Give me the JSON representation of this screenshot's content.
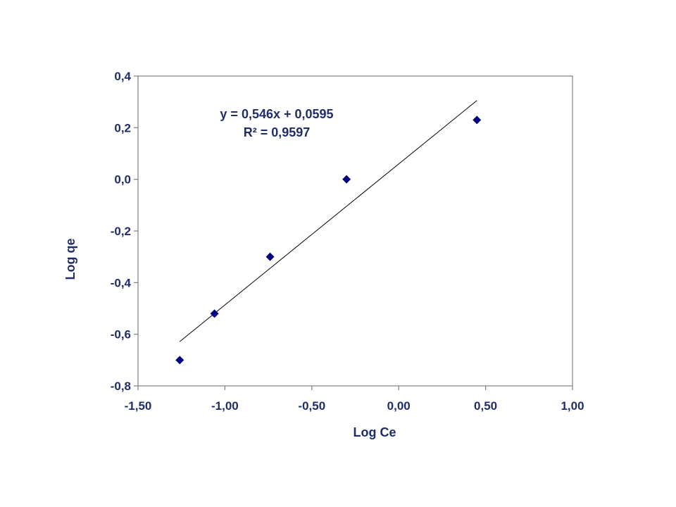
{
  "chart_data": {
    "type": "scatter",
    "xlabel": "Log Ce",
    "ylabel": "Log qe",
    "xlim": [
      -1.5,
      1.0
    ],
    "ylim": [
      -0.8,
      0.4
    ],
    "x_ticks": [
      -1.5,
      -1.0,
      -0.5,
      0.0,
      0.5,
      1.0
    ],
    "x_tick_labels": [
      "-1,50",
      "-1,00",
      "-0,50",
      "0,00",
      "0,50",
      "1,00"
    ],
    "y_ticks": [
      -0.8,
      -0.6,
      -0.4,
      -0.2,
      0.0,
      0.2,
      0.4
    ],
    "y_tick_labels": [
      "-0,8",
      "-0,6",
      "-0,4",
      "-0,2",
      "0,0",
      "0,2",
      "0,4"
    ],
    "grid": false,
    "legend": "none",
    "series": [
      {
        "x": [
          -1.26,
          -1.06,
          -0.74,
          -0.3,
          0.45
        ],
        "y": [
          -0.7,
          -0.52,
          -0.3,
          0.0,
          0.23
        ],
        "marker": "diamond",
        "color": "#000080"
      }
    ],
    "trendline": {
      "slope": 0.546,
      "intercept": 0.0595,
      "x_range": [
        -1.26,
        0.45
      ],
      "color": "#000000"
    },
    "annotations": {
      "equation": "y = 0,546x + 0,0595",
      "r_squared": "R² = 0,9597"
    },
    "colors": {
      "text": "#1f2d6b",
      "marker": "#000080",
      "axis": "#808080"
    }
  }
}
